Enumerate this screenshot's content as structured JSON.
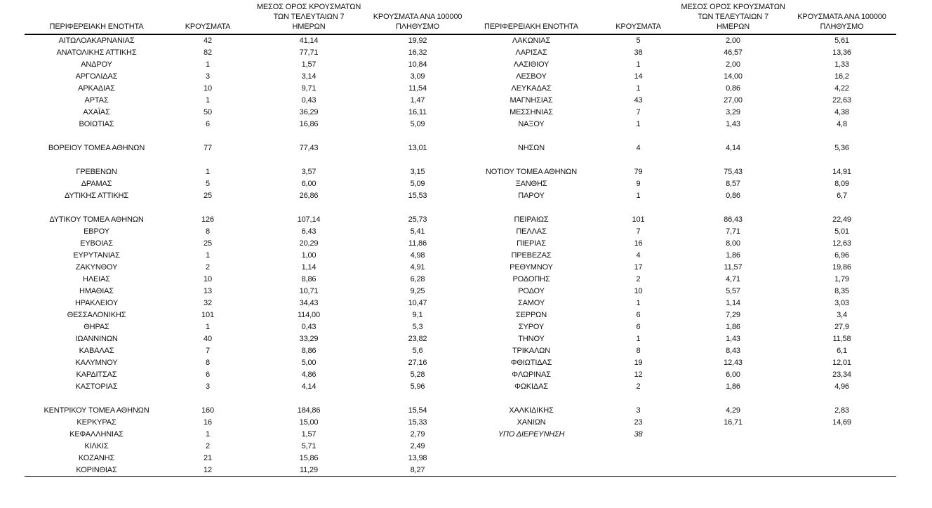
{
  "page": {
    "background_color": "#ffffff",
    "text_color": "#111111"
  },
  "table": {
    "headers": [
      {
        "lines": [
          "ΠΕΡΙΦΕΡΕΙΑΚΗ ΕΝΟΤΗΤΑ"
        ]
      },
      {
        "lines": [
          "ΚΡΟΥΣΜΑΤΑ"
        ]
      },
      {
        "lines": [
          "ΜΕΣΟΣ ΟΡΟΣ ΚΡΟΥΣΜΑΤΩΝ",
          "ΤΩΝ ΤΕΛΕΥΤΑΙΩΝ 7",
          "ΗΜΕΡΩΝ"
        ]
      },
      {
        "lines": [
          "ΚΡΟΥΣΜΑΤΑ ΑΝΑ 100000",
          "ΠΛΗΘΥΣΜΟ"
        ]
      },
      {
        "lines": [
          "ΠΕΡΙΦΕΡΕΙΑΚΗ ΕΝΟΤΗΤΑ"
        ]
      },
      {
        "lines": [
          "ΚΡΟΥΣΜΑΤΑ"
        ]
      },
      {
        "lines": [
          "ΜΕΣΟΣ ΟΡΟΣ ΚΡΟΥΣΜΑΤΩΝ",
          "ΤΩΝ ΤΕΛΕΥΤΑΙΩΝ 7",
          "ΗΜΕΡΩΝ"
        ]
      },
      {
        "lines": [
          "ΚΡΟΥΣΜΑΤΑ ΑΝΑ 100000",
          "ΠΛΗΘΥΣΜΟ"
        ]
      }
    ],
    "rows": [
      {
        "cells": [
          "ΑΙΤΩΛΟΑΚΑΡΝΑΝΙΑΣ",
          "42",
          "41,14",
          "19,92",
          "ΛΑΚΩΝΙΑΣ",
          "5",
          "2,00",
          "5,61"
        ]
      },
      {
        "cells": [
          "ΑΝΑΤΟΛΙΚΗΣ ΑΤΤΙΚΗΣ",
          "82",
          "77,71",
          "16,32",
          "ΛΑΡΙΣΑΣ",
          "38",
          "46,57",
          "13,36"
        ]
      },
      {
        "cells": [
          "ΑΝΔΡΟΥ",
          "1",
          "1,57",
          "10,84",
          "ΛΑΣΙΘΙΟΥ",
          "1",
          "2,00",
          "1,33"
        ]
      },
      {
        "cells": [
          "ΑΡΓΟΛΙΔΑΣ",
          "3",
          "3,14",
          "3,09",
          "ΛΕΣΒΟΥ",
          "14",
          "14,00",
          "16,2"
        ]
      },
      {
        "cells": [
          "ΑΡΚΑΔΙΑΣ",
          "10",
          "9,71",
          "11,54",
          "ΛΕΥΚΑΔΑΣ",
          "1",
          "0,86",
          "4,22"
        ]
      },
      {
        "cells": [
          "ΑΡΤΑΣ",
          "1",
          "0,43",
          "1,47",
          "ΜΑΓΝΗΣΙΑΣ",
          "43",
          "27,00",
          "22,63"
        ]
      },
      {
        "cells": [
          "ΑΧΑΪΑΣ",
          "50",
          "36,29",
          "16,11",
          "ΜΕΣΣΗΝΙΑΣ",
          "7",
          "3,29",
          "4,38"
        ]
      },
      {
        "cells": [
          "ΒΟΙΩΤΙΑΣ",
          "6",
          "16,86",
          "5,09",
          "ΝΑΞΟΥ",
          "1",
          "1,43",
          "4,8"
        ]
      },
      {
        "cells": [
          "",
          "",
          "",
          "",
          "",
          "",
          "",
          ""
        ]
      },
      {
        "cells": [
          "ΒΟΡΕΙΟΥ ΤΟΜΕΑ ΑΘΗΝΩΝ",
          "77",
          "77,43",
          "13,01",
          "ΝΗΣΩΝ",
          "4",
          "4,14",
          "5,36"
        ]
      },
      {
        "cells": [
          "",
          "",
          "",
          "",
          "",
          "",
          "",
          ""
        ]
      },
      {
        "cells": [
          "ΓΡΕΒΕΝΩΝ",
          "1",
          "3,57",
          "3,15",
          "ΝΟΤΙΟΥ ΤΟΜΕΑ ΑΘΗΝΩΝ",
          "79",
          "75,43",
          "14,91"
        ]
      },
      {
        "cells": [
          "ΔΡΑΜΑΣ",
          "5",
          "6,00",
          "5,09",
          "ΞΑΝΘΗΣ",
          "9",
          "8,57",
          "8,09"
        ]
      },
      {
        "cells": [
          "ΔΥΤΙΚΗΣ ΑΤΤΙΚΗΣ",
          "25",
          "26,86",
          "15,53",
          "ΠΑΡΟΥ",
          "1",
          "0,86",
          "6,7"
        ]
      },
      {
        "cells": [
          "",
          "",
          "",
          "",
          "",
          "",
          "",
          ""
        ]
      },
      {
        "cells": [
          "ΔΥΤΙΚΟΥ ΤΟΜΕΑ ΑΘΗΝΩΝ",
          "126",
          "107,14",
          "25,73",
          "ΠΕΙΡΑΙΩΣ",
          "101",
          "86,43",
          "22,49"
        ]
      },
      {
        "cells": [
          "ΕΒΡΟΥ",
          "8",
          "6,43",
          "5,41",
          "ΠΕΛΛΑΣ",
          "7",
          "7,71",
          "5,01"
        ]
      },
      {
        "cells": [
          "ΕΥΒΟΙΑΣ",
          "25",
          "20,29",
          "11,86",
          "ΠΙΕΡΙΑΣ",
          "16",
          "8,00",
          "12,63"
        ]
      },
      {
        "cells": [
          "ΕΥΡΥΤΑΝΙΑΣ",
          "1",
          "1,00",
          "4,98",
          "ΠΡΕΒΕΖΑΣ",
          "4",
          "1,86",
          "6,96"
        ]
      },
      {
        "cells": [
          "ΖΑΚΥΝΘΟΥ",
          "2",
          "1,14",
          "4,91",
          "ΡΕΘΥΜΝΟΥ",
          "17",
          "11,57",
          "19,86"
        ]
      },
      {
        "cells": [
          "ΗΛΕΙΑΣ",
          "10",
          "8,86",
          "6,28",
          "ΡΟΔΟΠΗΣ",
          "2",
          "4,71",
          "1,79"
        ]
      },
      {
        "cells": [
          "ΗΜΑΘΙΑΣ",
          "13",
          "10,71",
          "9,25",
          "ΡΟΔΟΥ",
          "10",
          "5,57",
          "8,35"
        ]
      },
      {
        "cells": [
          "ΗΡΑΚΛΕΙΟΥ",
          "32",
          "34,43",
          "10,47",
          "ΣΑΜΟΥ",
          "1",
          "1,14",
          "3,03"
        ]
      },
      {
        "cells": [
          "ΘΕΣΣΑΛΟΝΙΚΗΣ",
          "101",
          "114,00",
          "9,1",
          "ΣΕΡΡΩΝ",
          "6",
          "7,29",
          "3,4"
        ]
      },
      {
        "cells": [
          "ΘΗΡΑΣ",
          "1",
          "0,43",
          "5,3",
          "ΣΥΡΟΥ",
          "6",
          "1,86",
          "27,9"
        ]
      },
      {
        "cells": [
          "ΙΩΑΝΝΙΝΩΝ",
          "40",
          "33,29",
          "23,82",
          "ΤΗΝΟΥ",
          "1",
          "1,43",
          "11,58"
        ]
      },
      {
        "cells": [
          "ΚΑΒΑΛΑΣ",
          "7",
          "8,86",
          "5,6",
          "ΤΡΙΚΑΛΩΝ",
          "8",
          "8,43",
          "6,1"
        ]
      },
      {
        "cells": [
          "ΚΑΛΥΜΝΟΥ",
          "8",
          "5,00",
          "27,16",
          "ΦΘΙΩΤΙΔΑΣ",
          "19",
          "12,43",
          "12,01"
        ]
      },
      {
        "cells": [
          "ΚΑΡΔΙΤΣΑΣ",
          "6",
          "4,86",
          "5,28",
          "ΦΛΩΡΙΝΑΣ",
          "12",
          "6,00",
          "23,34"
        ]
      },
      {
        "cells": [
          "ΚΑΣΤΟΡΙΑΣ",
          "3",
          "4,14",
          "5,96",
          "ΦΩΚΙΔΑΣ",
          "2",
          "1,86",
          "4,96"
        ]
      },
      {
        "cells": [
          "",
          "",
          "",
          "",
          "",
          "",
          "",
          ""
        ]
      },
      {
        "cells": [
          "ΚΕΝΤΡΙΚΟΥ ΤΟΜΕΑ ΑΘΗΝΩΝ",
          "160",
          "184,86",
          "15,54",
          "ΧΑΛΚΙΔΙΚΗΣ",
          "3",
          "4,29",
          "2,83"
        ]
      },
      {
        "cells": [
          "ΚΕΡΚΥΡΑΣ",
          "16",
          "15,00",
          "15,33",
          "ΧΑΝΙΩΝ",
          "23",
          "16,71",
          "14,69"
        ]
      },
      {
        "cells": [
          "ΚΕΦΑΛΛΗΝΙΑΣ",
          "1",
          "1,57",
          "2,79",
          "ΥΠΟ ΔΙΕΡΕΥΝΗΣΗ",
          "38",
          "",
          ""
        ],
        "italic_right": true
      },
      {
        "cells": [
          "ΚΙΛΚΙΣ",
          "2",
          "5,71",
          "2,49",
          "",
          "",
          "",
          ""
        ]
      },
      {
        "cells": [
          "ΚΟΖΑΝΗΣ",
          "21",
          "15,86",
          "13,98",
          "",
          "",
          "",
          ""
        ]
      },
      {
        "cells": [
          "ΚΟΡΙΝΘΙΑΣ",
          "12",
          "11,29",
          "8,27",
          "",
          "",
          "",
          ""
        ]
      }
    ]
  }
}
